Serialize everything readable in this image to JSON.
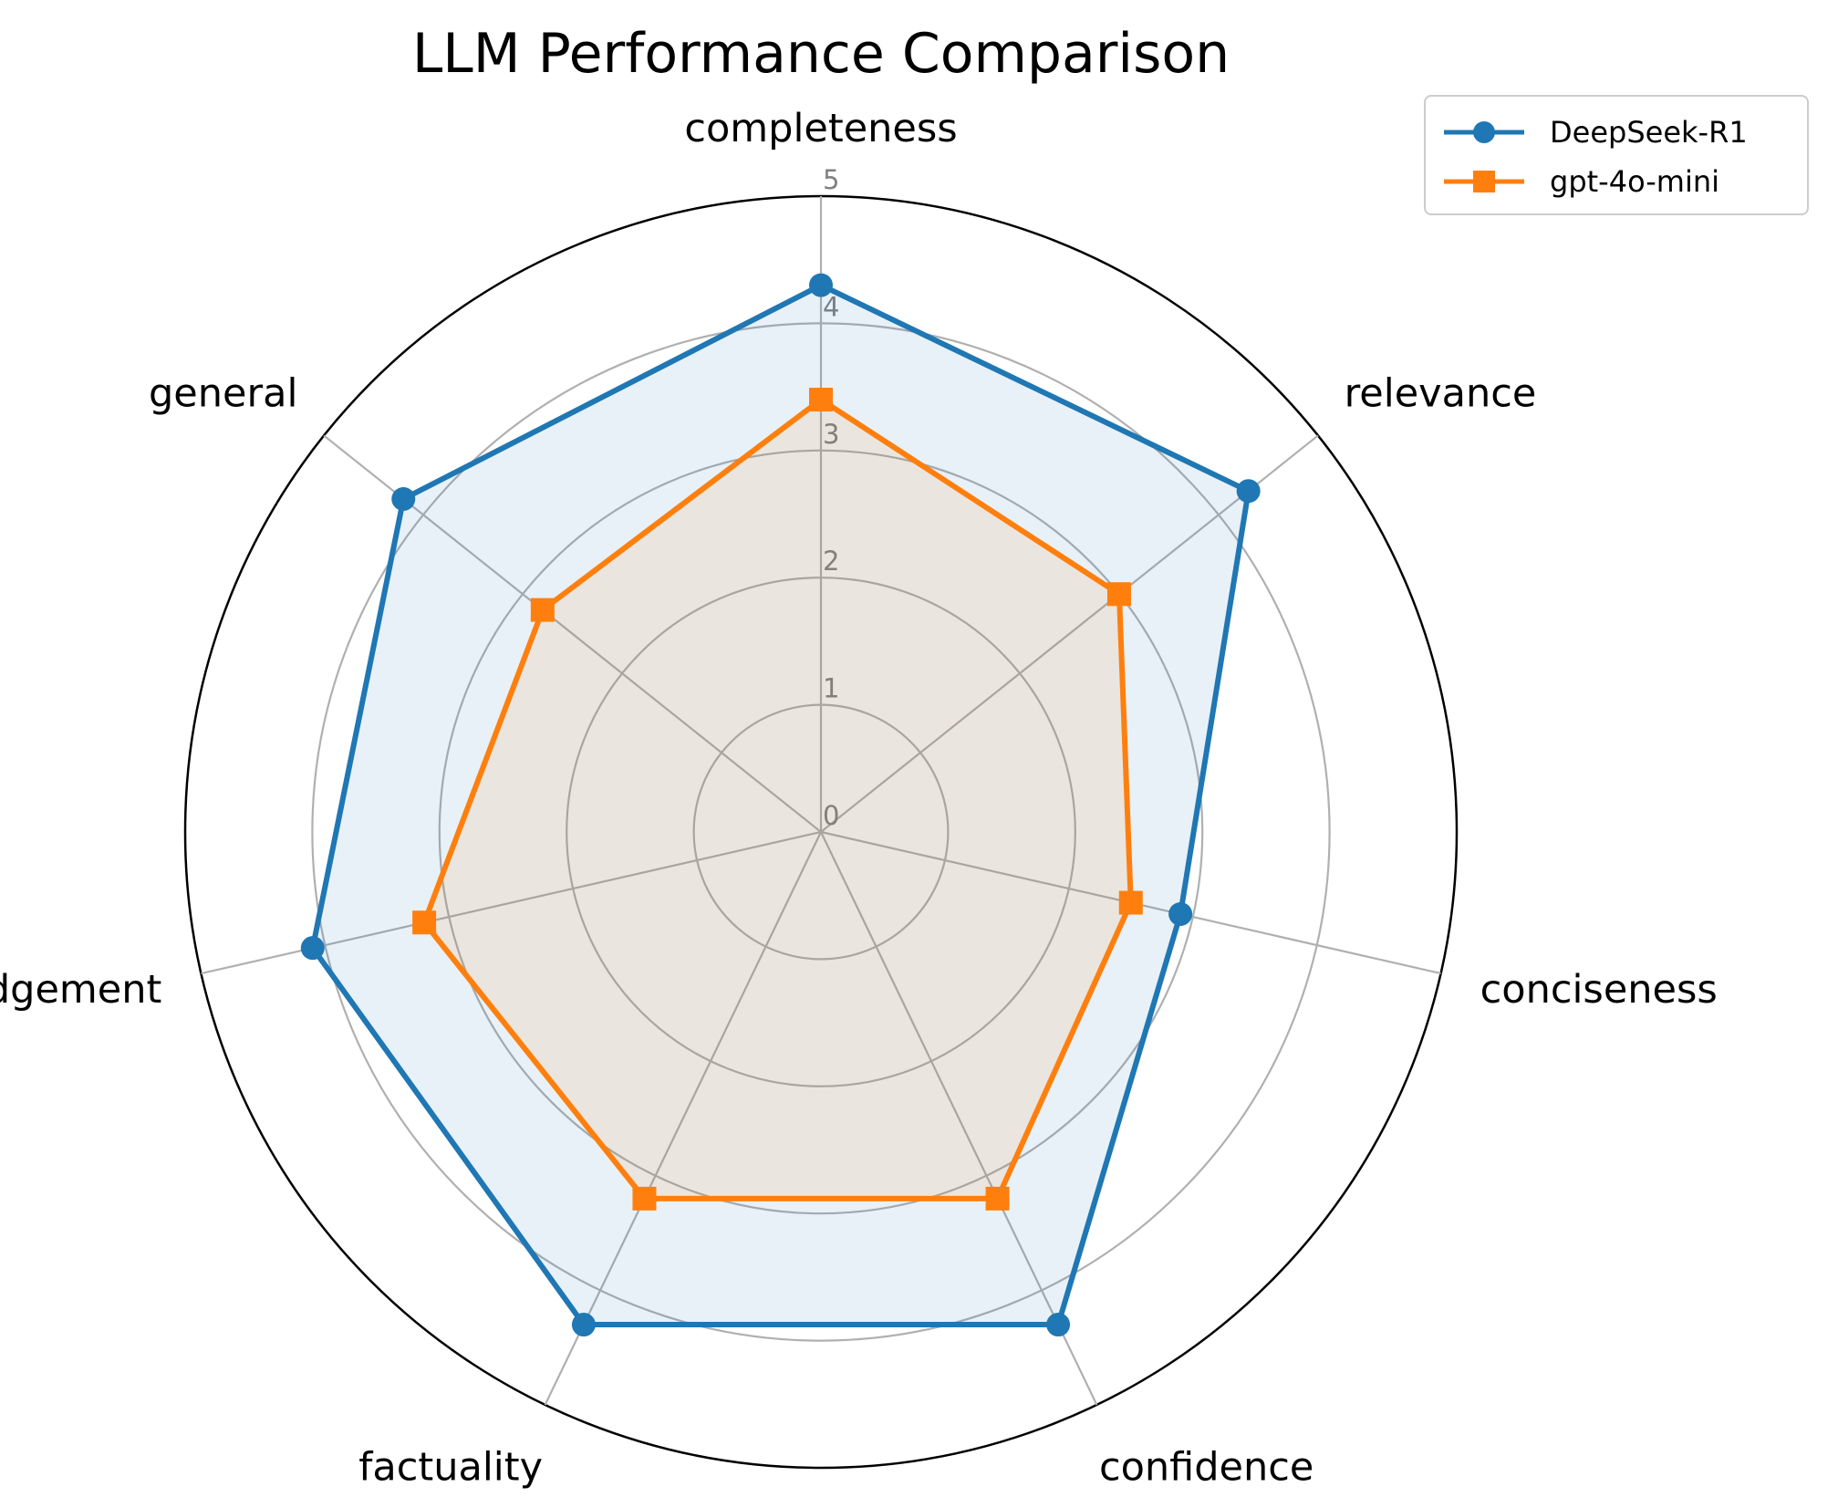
{
  "chart_data": {
    "type": "radar",
    "title": "LLM Performance Comparison",
    "categories": [
      "completeness",
      "relevance",
      "conciseness",
      "confidence",
      "factuality",
      "judgement",
      "general"
    ],
    "rlim": [
      0,
      5
    ],
    "radial_ticks": [
      "0",
      "1",
      "2",
      "3",
      "4",
      "5"
    ],
    "grid": true,
    "legend_position": "top-right",
    "series": [
      {
        "name": "DeepSeek-R1",
        "color": "#1f77b4",
        "marker": "circle",
        "values": [
          4.3,
          4.3,
          2.9,
          4.3,
          4.3,
          4.1,
          4.2
        ]
      },
      {
        "name": "gpt-4o-mini",
        "color": "#ff7f0e",
        "marker": "square",
        "values": [
          3.4,
          3.0,
          2.5,
          3.2,
          3.2,
          3.2,
          2.8
        ]
      }
    ]
  }
}
